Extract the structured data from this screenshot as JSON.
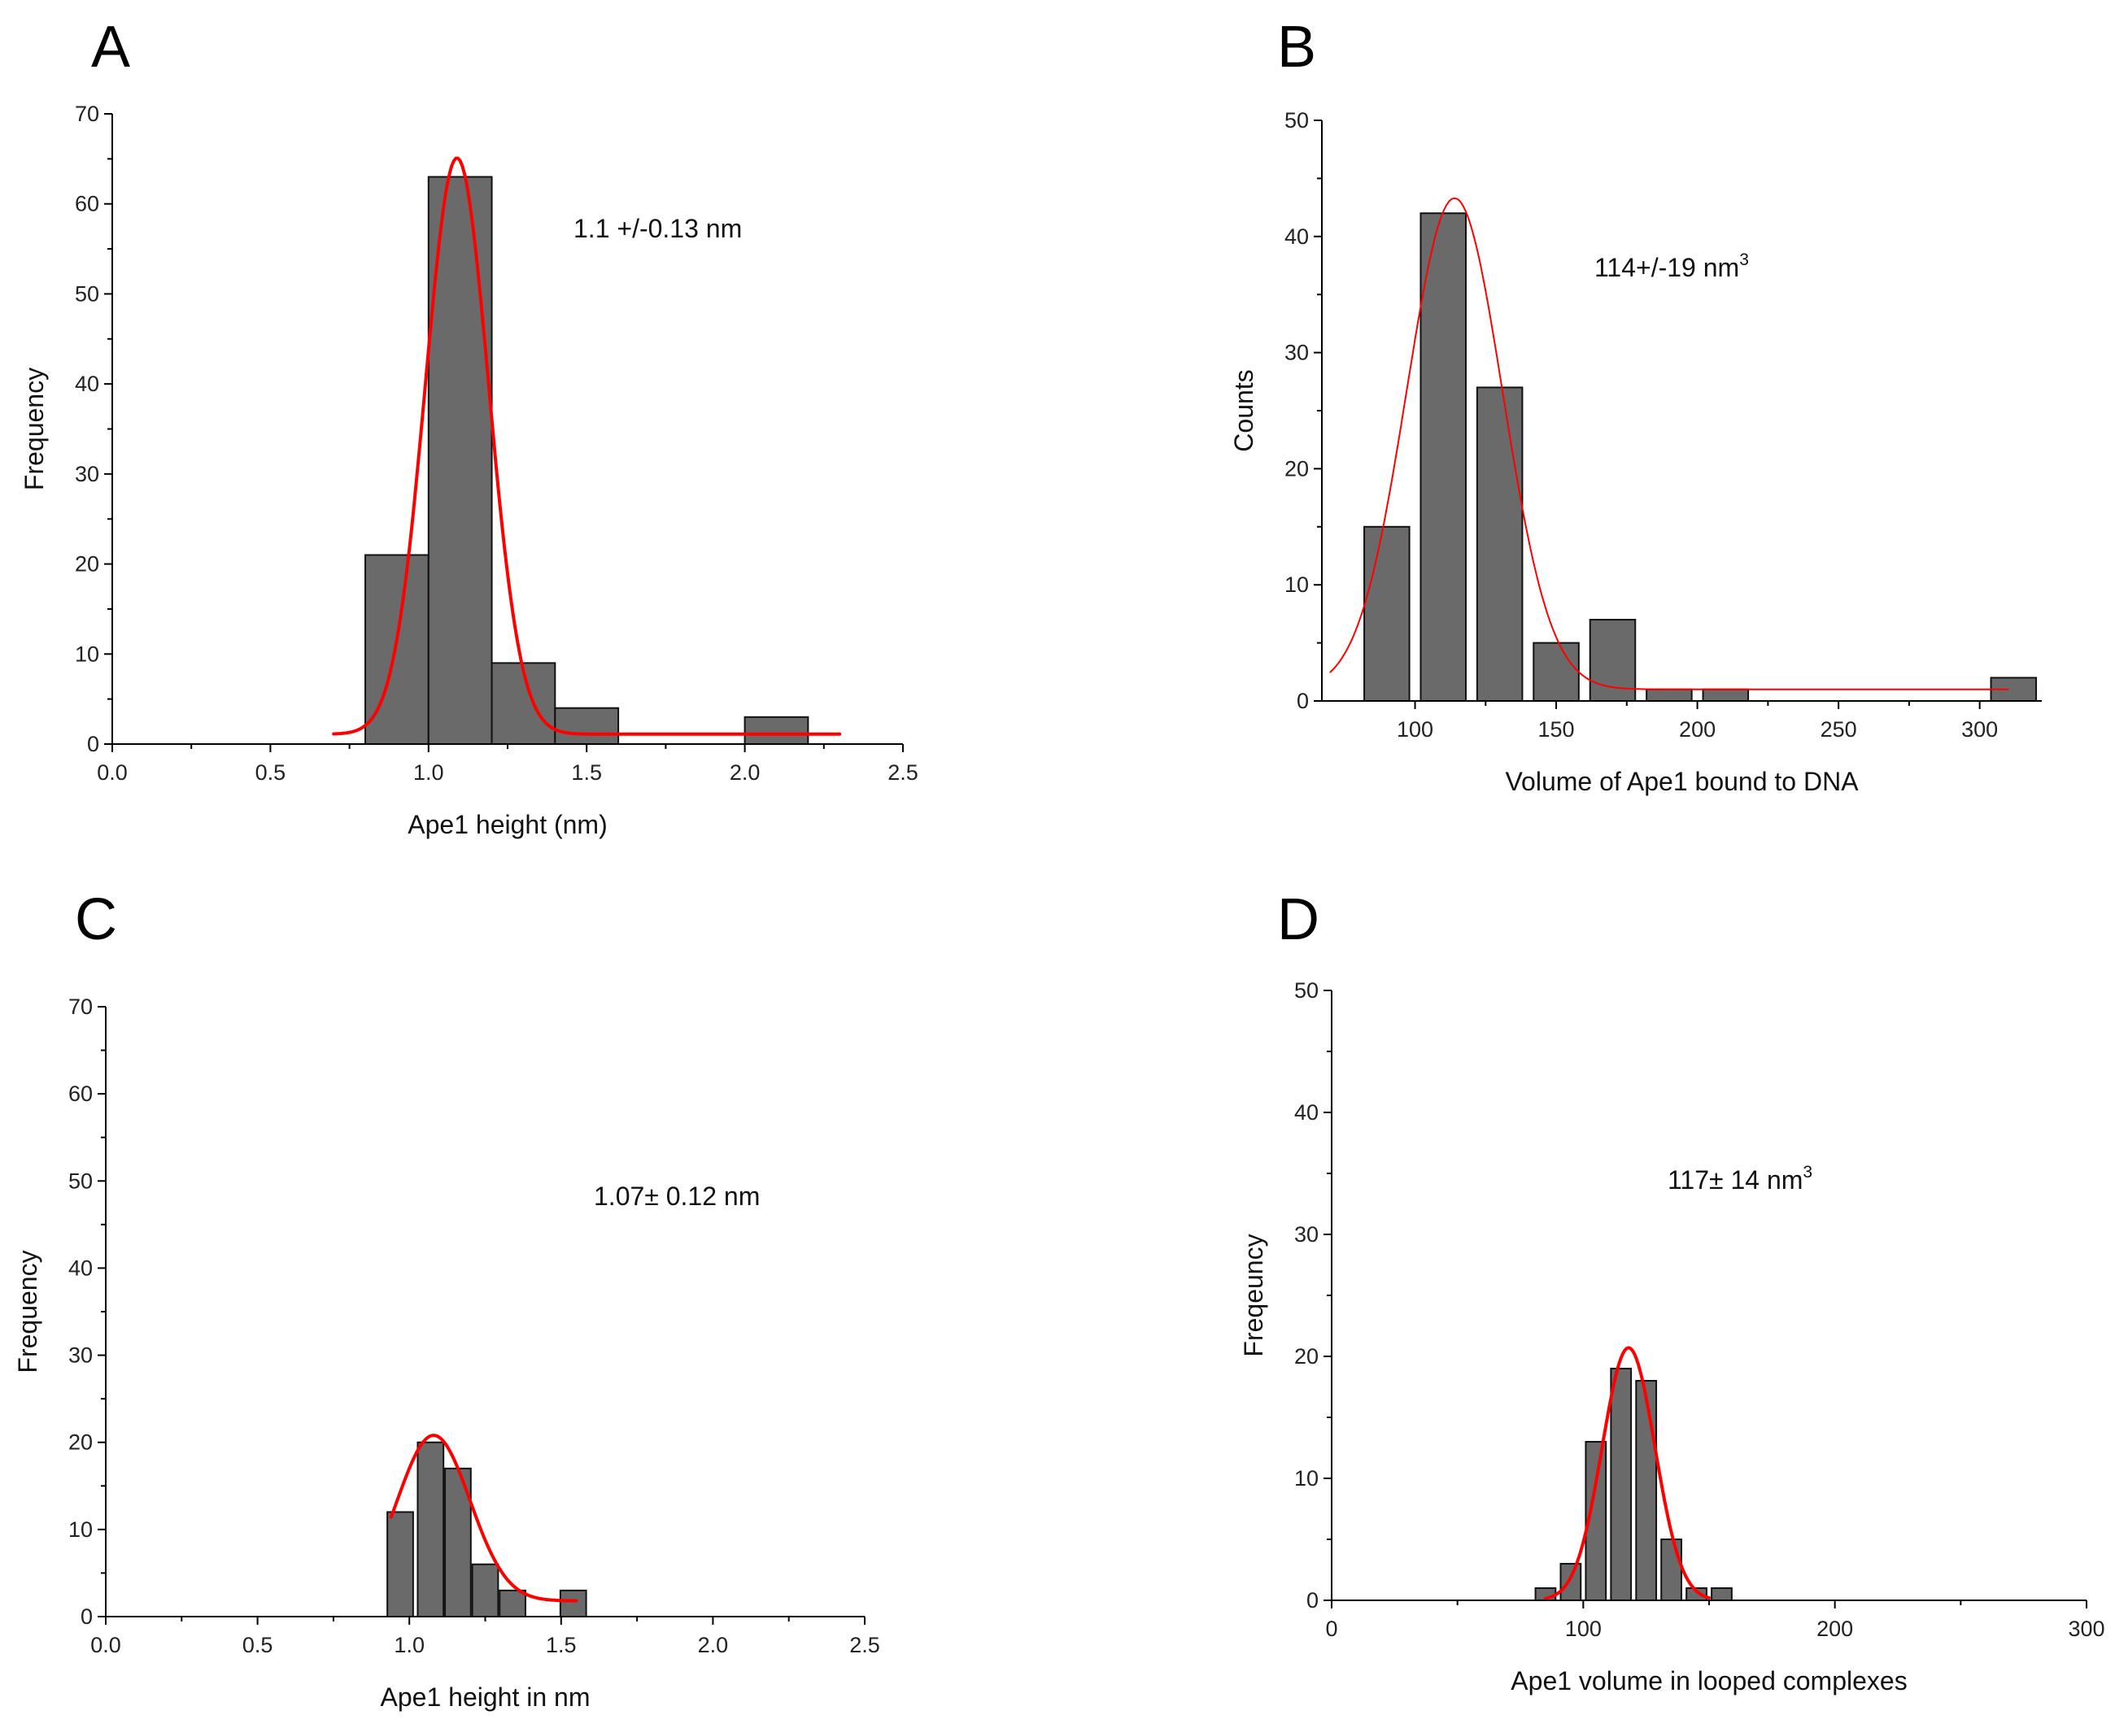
{
  "chart_data": [
    {
      "panel": "A",
      "type": "bar",
      "title": "",
      "xlabel": "Ape1 height (nm)",
      "ylabel": "Frequency",
      "xlim": [
        0.0,
        2.5
      ],
      "ylim": [
        0,
        70
      ],
      "xticks": [
        "0.0",
        "0.5",
        "1.0",
        "1.5",
        "2.0",
        "2.5"
      ],
      "yticks": [
        "0",
        "10",
        "20",
        "30",
        "40",
        "50",
        "60",
        "70"
      ],
      "bin_width": 0.2,
      "bins": [
        {
          "center": 0.9,
          "value": 21
        },
        {
          "center": 1.1,
          "value": 63
        },
        {
          "center": 1.3,
          "value": 9
        },
        {
          "center": 1.5,
          "value": 4
        },
        {
          "center": 2.1,
          "value": 3
        }
      ],
      "fit": {
        "type": "gaussian",
        "baseline": 1.1,
        "amplitude": 64,
        "mean": 1.09,
        "sigma": 0.1,
        "x_range": [
          0.7,
          2.3
        ],
        "color": "#ff0000",
        "weight": "thick"
      },
      "annotation": {
        "text": "1.1 +/-0.13 nm",
        "superscript": ""
      }
    },
    {
      "panel": "B",
      "type": "bar",
      "title": "",
      "xlabel": "Volume of Ape1 bound to DNA",
      "ylabel": "Counts",
      "xlim": [
        67,
        322
      ],
      "ylim": [
        0,
        50
      ],
      "xticks": [
        "100",
        "150",
        "200",
        "250",
        "300"
      ],
      "yticks": [
        "0",
        "10",
        "20",
        "30",
        "40",
        "50"
      ],
      "bin_width": 16,
      "bins": [
        {
          "center": 90,
          "value": 15
        },
        {
          "center": 110,
          "value": 42
        },
        {
          "center": 130,
          "value": 27
        },
        {
          "center": 150,
          "value": 5
        },
        {
          "center": 170,
          "value": 7
        },
        {
          "center": 190,
          "value": 1
        },
        {
          "center": 210,
          "value": 1
        },
        {
          "center": 312,
          "value": 2
        }
      ],
      "fit": {
        "type": "gaussian",
        "baseline": 1.0,
        "amplitude": 42.3,
        "mean": 114,
        "sigma": 17,
        "x_range": [
          70,
          310
        ],
        "color": "#ff0000",
        "weight": "thin"
      },
      "annotation": {
        "text": "114+/-19 nm",
        "superscript": "3"
      }
    },
    {
      "panel": "C",
      "type": "bar",
      "title": "",
      "xlabel": "Ape1 height in nm",
      "ylabel": "Frequency",
      "xlim": [
        0.0,
        2.5
      ],
      "ylim": [
        0,
        70
      ],
      "xticks": [
        "0.0",
        "0.5",
        "1.0",
        "1.5",
        "2.0",
        "2.5"
      ],
      "yticks": [
        "0",
        "10",
        "20",
        "30",
        "40",
        "50",
        "60",
        "70"
      ],
      "bin_width": 0.085,
      "bins": [
        {
          "center": 0.97,
          "value": 12
        },
        {
          "center": 1.07,
          "value": 20
        },
        {
          "center": 1.16,
          "value": 17
        },
        {
          "center": 1.25,
          "value": 6
        },
        {
          "center": 1.34,
          "value": 3
        },
        {
          "center": 1.54,
          "value": 3
        }
      ],
      "fit": {
        "type": "gaussian",
        "baseline": 1.8,
        "amplitude": 19,
        "mean": 1.08,
        "sigma": 0.12,
        "x_range": [
          0.94,
          1.55
        ],
        "color": "#ff0000",
        "weight": "thick"
      },
      "annotation": {
        "text": "1.07± 0.12 nm",
        "superscript": ""
      }
    },
    {
      "panel": "D",
      "type": "bar",
      "title": "",
      "xlabel": "Ape1 volume in looped complexes",
      "ylabel": "Freqeuncy",
      "xlim": [
        0,
        300
      ],
      "ylim": [
        0,
        50
      ],
      "xticks": [
        "0",
        "100",
        "200",
        "300"
      ],
      "yticks": [
        "0",
        "10",
        "20",
        "30",
        "40",
        "50"
      ],
      "bin_width": 8,
      "bins": [
        {
          "center": 85,
          "value": 1
        },
        {
          "center": 95,
          "value": 3
        },
        {
          "center": 105,
          "value": 13
        },
        {
          "center": 115,
          "value": 19
        },
        {
          "center": 125,
          "value": 18
        },
        {
          "center": 135,
          "value": 5
        },
        {
          "center": 145,
          "value": 1
        },
        {
          "center": 155,
          "value": 1
        }
      ],
      "fit": {
        "type": "gaussian",
        "baseline": 0,
        "amplitude": 20.7,
        "mean": 118,
        "sigma": 10.5,
        "x_range": [
          85,
          150
        ],
        "color": "#ff0000",
        "weight": "thick"
      },
      "annotation": {
        "text": "117± 14 nm",
        "superscript": "3"
      }
    }
  ]
}
